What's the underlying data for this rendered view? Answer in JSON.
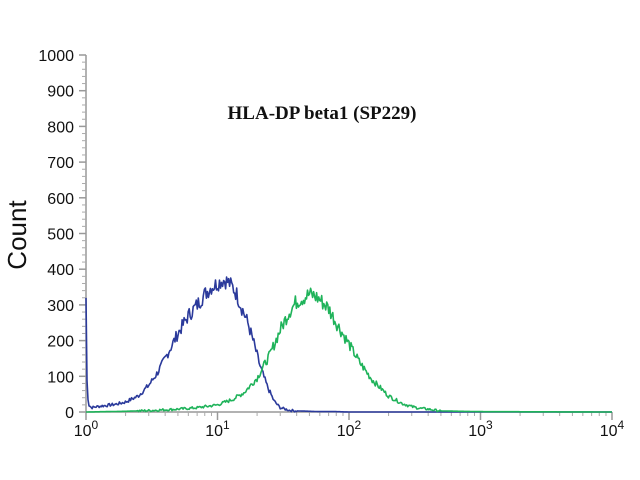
{
  "chart_data": {
    "type": "line",
    "title": "HLA-DP beta1 (SP229)",
    "xlabel": "",
    "ylabel": "Count",
    "x_scale": "log",
    "xlim": [
      1,
      10000
    ],
    "ylim": [
      0,
      1000
    ],
    "grid": false,
    "legend": "none",
    "y_ticks": [
      "0",
      "100",
      "200",
      "300",
      "400",
      "500",
      "600",
      "700",
      "800",
      "900",
      "1000"
    ],
    "x_ticks": [
      {
        "base": "10",
        "exp": "0"
      },
      {
        "base": "10",
        "exp": "1"
      },
      {
        "base": "10",
        "exp": "2"
      },
      {
        "base": "10",
        "exp": "3"
      },
      {
        "base": "10",
        "exp": "4"
      }
    ],
    "series": [
      {
        "color": "#2b3a9b",
        "x": [
          1.0,
          1.02,
          1.05,
          1.1,
          1.2,
          1.4,
          1.7,
          2.0,
          2.5,
          3.0,
          3.5,
          4.0,
          5.0,
          6.0,
          7.0,
          8.0,
          9.0,
          10.0,
          11.0,
          12.0,
          13.0,
          14.0,
          15.0,
          17.0,
          19.0,
          21.0,
          24.0,
          27.0,
          30.0,
          35.0,
          40.0,
          50.0,
          60.0,
          80.0,
          100.0,
          1000.0,
          10000.0
        ],
        "y": [
          320,
          60,
          20,
          12,
          15,
          18,
          22,
          28,
          45,
          75,
          110,
          150,
          220,
          270,
          300,
          330,
          350,
          360,
          370,
          365,
          350,
          330,
          300,
          250,
          190,
          130,
          70,
          30,
          12,
          5,
          3,
          2,
          1,
          1,
          0,
          0,
          0
        ]
      },
      {
        "color": "#1fb35a",
        "x": [
          1.0,
          2.0,
          3.0,
          5.0,
          7.0,
          10.0,
          13.0,
          16.0,
          20.0,
          25.0,
          30.0,
          35.0,
          40.0,
          45.0,
          50.0,
          55.0,
          60.0,
          70.0,
          80.0,
          100.0,
          120.0,
          150.0,
          200.0,
          250.0,
          300.0,
          350.0,
          400.0,
          450.0,
          500.0,
          700.0,
          1000.0,
          10000.0
        ],
        "y": [
          0,
          2,
          4,
          8,
          12,
          20,
          35,
          55,
          95,
          160,
          230,
          280,
          310,
          320,
          330,
          325,
          315,
          290,
          250,
          190,
          140,
          90,
          45,
          25,
          15,
          10,
          8,
          5,
          3,
          2,
          1,
          0
        ]
      }
    ]
  }
}
